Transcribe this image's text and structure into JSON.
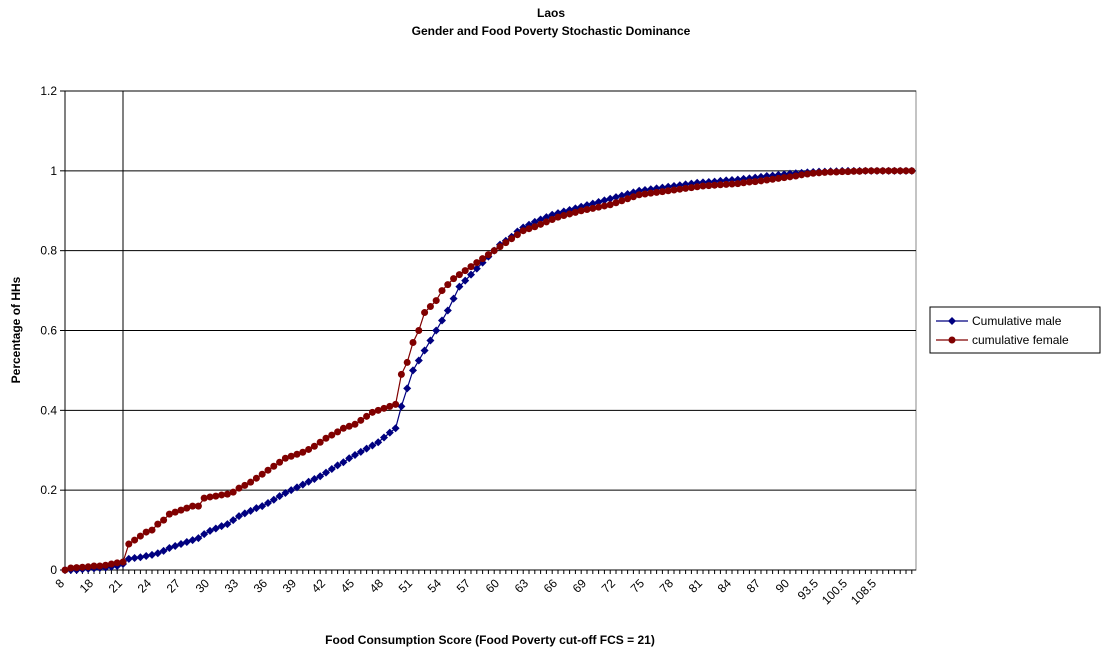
{
  "chart_data": {
    "type": "line",
    "title": "Laos",
    "subtitle": "Gender and Food Poverty Stochastic Dominance",
    "x_label": "Food Consumption Score (Food Poverty cut-off FCS = 21)",
    "y_label": "Percentage of HHs",
    "categories": [
      8,
      null,
      null,
      null,
      null,
      18,
      null,
      null,
      null,
      null,
      21,
      null,
      null,
      null,
      null,
      24,
      null,
      null,
      null,
      null,
      27,
      null,
      null,
      null,
      null,
      30,
      null,
      null,
      null,
      null,
      33,
      null,
      null,
      null,
      null,
      36,
      null,
      null,
      null,
      null,
      39,
      null,
      null,
      null,
      null,
      42,
      null,
      null,
      null,
      null,
      45,
      null,
      null,
      null,
      null,
      48,
      null,
      null,
      null,
      null,
      51,
      null,
      null,
      null,
      null,
      54,
      null,
      null,
      null,
      null,
      57,
      null,
      null,
      null,
      null,
      60,
      null,
      null,
      null,
      null,
      63,
      null,
      null,
      null,
      null,
      66,
      null,
      null,
      null,
      null,
      69,
      null,
      null,
      null,
      null,
      72,
      null,
      null,
      null,
      null,
      75,
      null,
      null,
      null,
      null,
      78,
      null,
      null,
      null,
      null,
      81,
      null,
      null,
      null,
      null,
      84,
      null,
      null,
      null,
      null,
      87,
      null,
      null,
      null,
      null,
      90,
      null,
      null,
      null,
      null,
      93.5,
      null,
      null,
      null,
      null,
      100.5,
      null,
      null,
      null,
      null,
      108.5,
      null,
      null,
      null,
      null,
      null,
      null
    ],
    "series": [
      {
        "name": "Cumulative male",
        "color": "#000080",
        "marker": "diamond",
        "values": [
          0,
          0,
          0,
          0.002,
          0.003,
          0.004,
          0.005,
          0.006,
          0.008,
          0.01,
          0.015,
          0.028,
          0.03,
          0.032,
          0.035,
          0.038,
          0.042,
          0.048,
          0.055,
          0.06,
          0.065,
          0.07,
          0.075,
          0.08,
          0.09,
          0.098,
          0.104,
          0.11,
          0.115,
          0.125,
          0.135,
          0.142,
          0.148,
          0.155,
          0.16,
          0.168,
          0.176,
          0.185,
          0.193,
          0.2,
          0.207,
          0.214,
          0.221,
          0.228,
          0.235,
          0.244,
          0.253,
          0.262,
          0.27,
          0.28,
          0.288,
          0.296,
          0.304,
          0.312,
          0.32,
          0.332,
          0.344,
          0.355,
          0.41,
          0.455,
          0.5,
          0.525,
          0.55,
          0.575,
          0.6,
          0.625,
          0.65,
          0.68,
          0.71,
          0.725,
          0.74,
          0.755,
          0.77,
          0.785,
          0.8,
          0.815,
          0.825,
          0.835,
          0.848,
          0.858,
          0.865,
          0.872,
          0.878,
          0.884,
          0.89,
          0.894,
          0.898,
          0.902,
          0.906,
          0.91,
          0.914,
          0.918,
          0.922,
          0.926,
          0.93,
          0.934,
          0.938,
          0.942,
          0.946,
          0.95,
          0.952,
          0.954,
          0.956,
          0.958,
          0.96,
          0.962,
          0.964,
          0.966,
          0.968,
          0.97,
          0.971,
          0.972,
          0.973,
          0.975,
          0.976,
          0.977,
          0.978,
          0.98,
          0.981,
          0.983,
          0.985,
          0.987,
          0.988,
          0.99,
          0.991,
          0.993,
          0.994,
          0.995,
          0.996,
          0.997,
          0.998,
          0.998,
          0.999,
          0.999,
          1,
          1,
          1,
          1,
          1,
          1,
          1,
          1,
          1,
          1,
          1,
          1,
          1
        ]
      },
      {
        "name": "cumulative female",
        "color": "#800000",
        "marker": "circle",
        "values": [
          0,
          0.005,
          0.006,
          0.007,
          0.008,
          0.01,
          0.01,
          0.012,
          0.015,
          0.018,
          0.02,
          0.065,
          0.075,
          0.085,
          0.095,
          0.1,
          0.115,
          0.125,
          0.14,
          0.145,
          0.15,
          0.155,
          0.16,
          0.16,
          0.18,
          0.183,
          0.185,
          0.188,
          0.19,
          0.195,
          0.205,
          0.212,
          0.22,
          0.23,
          0.24,
          0.25,
          0.26,
          0.27,
          0.28,
          0.285,
          0.29,
          0.295,
          0.302,
          0.31,
          0.32,
          0.33,
          0.338,
          0.346,
          0.355,
          0.36,
          0.365,
          0.375,
          0.385,
          0.395,
          0.4,
          0.405,
          0.41,
          0.415,
          0.49,
          0.52,
          0.57,
          0.6,
          0.645,
          0.66,
          0.675,
          0.7,
          0.715,
          0.73,
          0.74,
          0.75,
          0.76,
          0.77,
          0.78,
          0.79,
          0.8,
          0.81,
          0.82,
          0.83,
          0.84,
          0.85,
          0.855,
          0.86,
          0.866,
          0.872,
          0.878,
          0.884,
          0.888,
          0.892,
          0.896,
          0.9,
          0.903,
          0.906,
          0.909,
          0.912,
          0.915,
          0.92,
          0.925,
          0.93,
          0.935,
          0.94,
          0.942,
          0.944,
          0.946,
          0.948,
          0.95,
          0.952,
          0.954,
          0.956,
          0.958,
          0.96,
          0.962,
          0.963,
          0.964,
          0.965,
          0.966,
          0.967,
          0.968,
          0.97,
          0.972,
          0.973,
          0.975,
          0.977,
          0.979,
          0.981,
          0.983,
          0.985,
          0.987,
          0.99,
          0.992,
          0.994,
          0.995,
          0.996,
          0.997,
          0.997,
          0.998,
          0.998,
          0.999,
          0.999,
          1,
          1,
          1,
          1,
          1,
          1,
          1,
          1,
          1
        ]
      }
    ],
    "ylim": [
      0,
      1.2
    ],
    "yticks": [
      0,
      0.2,
      0.4,
      0.6,
      0.8,
      1,
      1.2
    ],
    "grid": true,
    "reference_line": 21,
    "legend": "right"
  }
}
